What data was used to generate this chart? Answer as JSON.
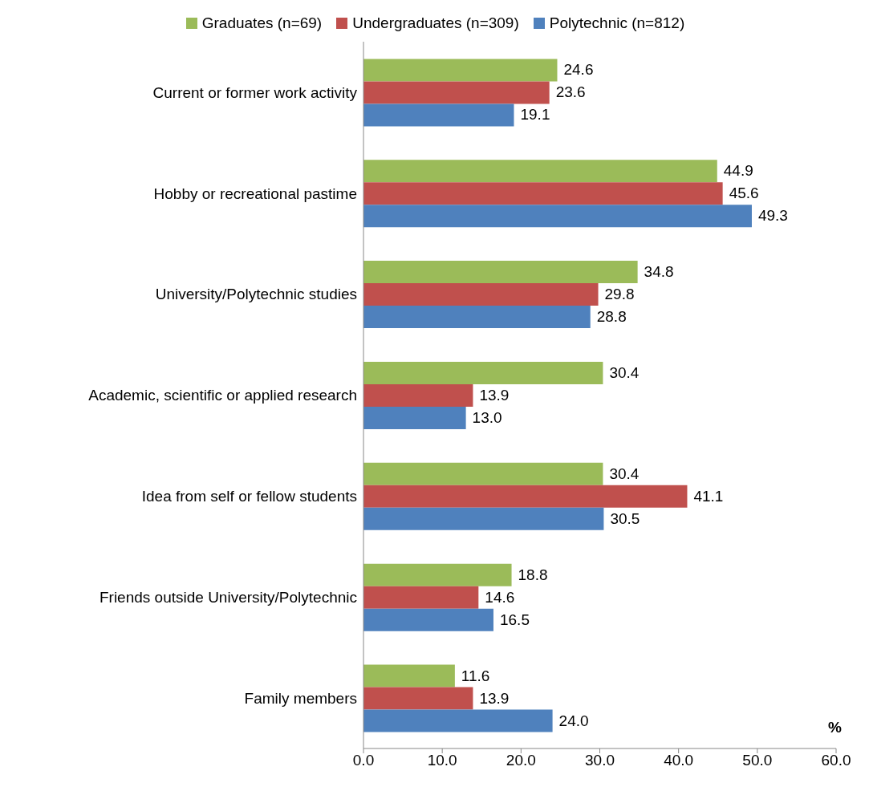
{
  "chart_data": {
    "type": "bar",
    "orientation": "horizontal",
    "xlabel": "%",
    "categories": [
      "Current or former work activity",
      "Hobby or recreational pastime",
      "University/Polytechnic studies",
      "Academic, scientific or applied research",
      "Idea from self or fellow students",
      "Friends outside University/Polytechnic",
      "Family members"
    ],
    "series": [
      {
        "name": "Graduates (n=69)",
        "color": "#9bbb59",
        "values": [
          24.6,
          44.9,
          34.8,
          30.4,
          30.4,
          18.8,
          11.6
        ],
        "value_labels": [
          "24.6",
          "44.9",
          "34.8",
          "30.4",
          "30.4",
          "18.8",
          "11.6"
        ]
      },
      {
        "name": "Undergraduates (n=309)",
        "color": "#c0504d",
        "values": [
          23.6,
          45.6,
          29.8,
          13.9,
          41.1,
          14.6,
          13.9
        ],
        "value_labels": [
          "23.6",
          "45.6",
          "29.8",
          "13.9",
          "41.1",
          "14.6",
          "13.9"
        ]
      },
      {
        "name": "Polytechnic (n=812)",
        "color": "#4f81bd",
        "values": [
          19.1,
          49.3,
          28.8,
          13.0,
          30.5,
          16.5,
          24.0
        ],
        "value_labels": [
          "19.1",
          "49.3",
          "28.8",
          "13.0",
          "30.5",
          "16.5",
          "24.0"
        ]
      }
    ],
    "xlim": [
      0,
      60
    ],
    "xticks": [
      {
        "value": 0,
        "label": "0.0"
      },
      {
        "value": 10,
        "label": "10.0"
      },
      {
        "value": 20,
        "label": "20.0"
      },
      {
        "value": 30,
        "label": "30.0"
      },
      {
        "value": 40,
        "label": "40.0"
      },
      {
        "value": 50,
        "label": "50.0"
      },
      {
        "value": 60,
        "label": "60.0"
      }
    ],
    "legend": "top",
    "grid": false
  }
}
